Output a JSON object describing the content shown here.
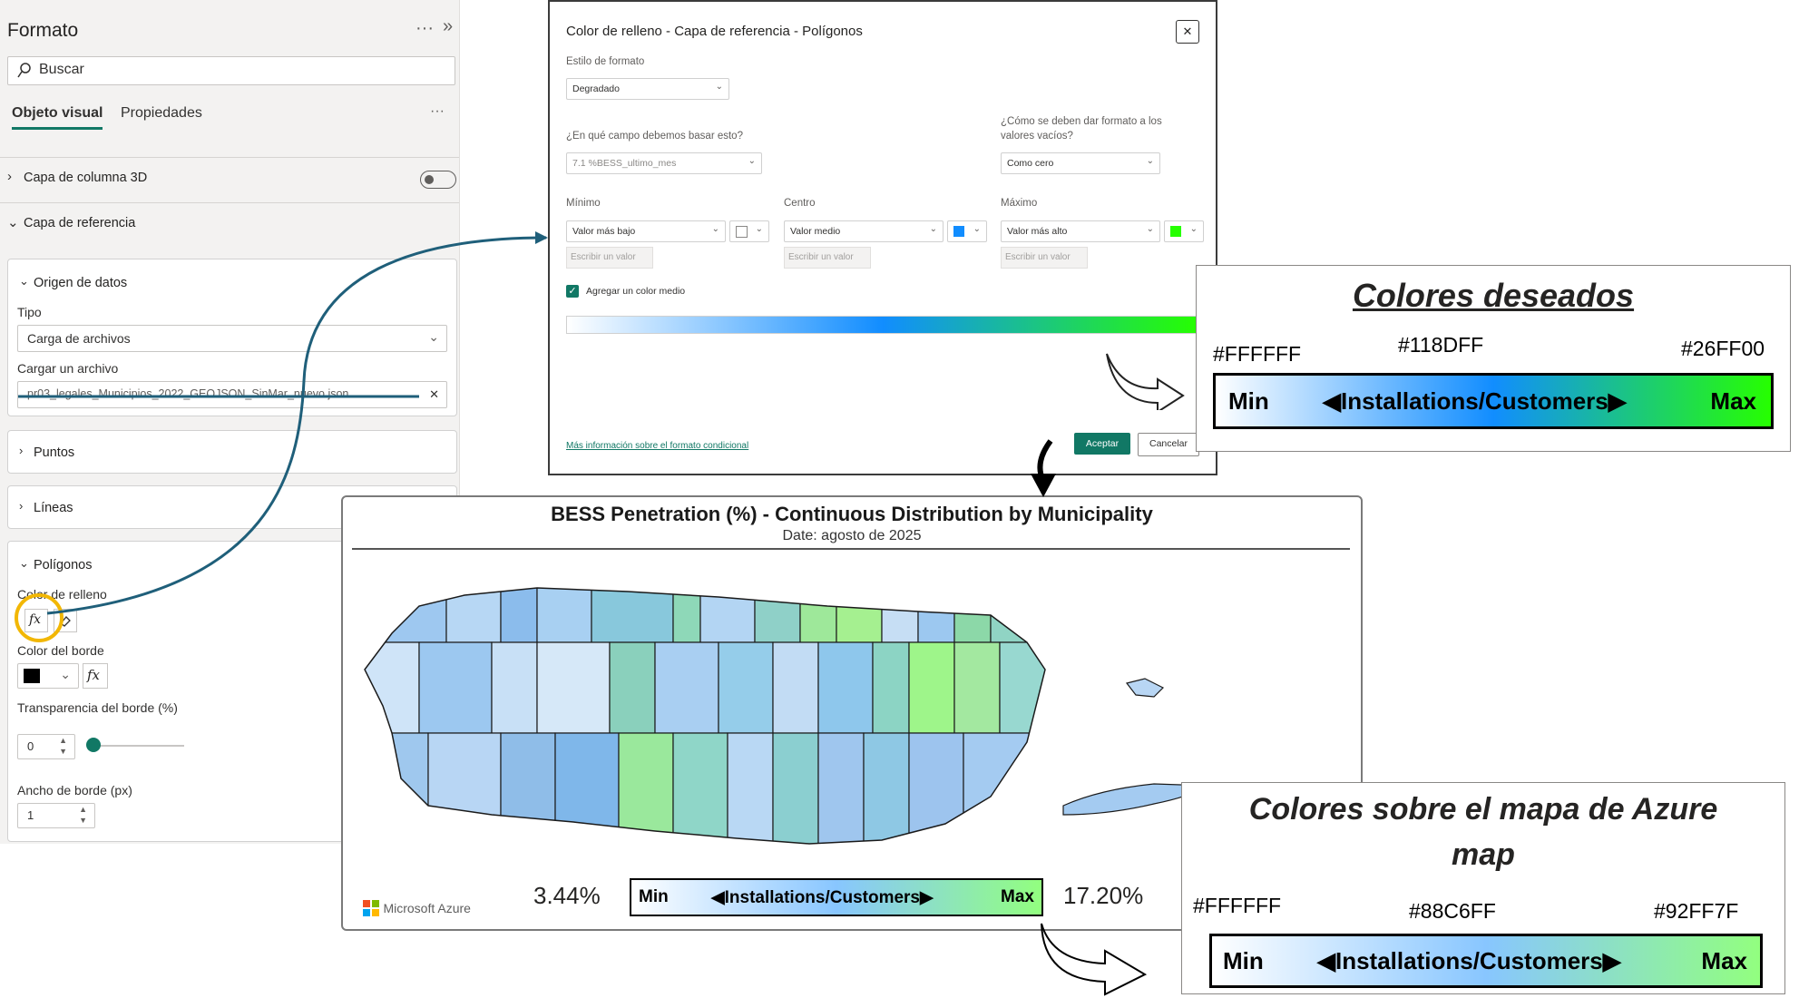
{
  "format_pane": {
    "title": "Formato",
    "more": "···",
    "collapse": "»",
    "search_placeholder": "Buscar",
    "tabs": {
      "visual": "Objeto visual",
      "properties": "Propiedades",
      "more": "···"
    },
    "sections": {
      "columns3d": "Capa de columna 3D",
      "reference": "Capa de referencia"
    },
    "data_source": {
      "title": "Origen de datos",
      "type_label": "Tipo",
      "type_value": "Carga de archivos",
      "file_label": "Cargar un archivo",
      "file_value": "pr03_legales_Municipios_2022_GEOJSON_SinMar_nuevo.json",
      "clear": "✕"
    },
    "points": "Puntos",
    "lines": "Líneas",
    "polygons": {
      "title": "Polígonos",
      "fill_label": "Color de relleno",
      "fx": "fx",
      "border_color_label": "Color del borde",
      "border_color": "#000000",
      "transparency_label": "Transparencia del borde (%)",
      "transparency_value": "0",
      "width_label": "Ancho de borde (px)",
      "width_value": "1"
    }
  },
  "dialog": {
    "title": "Color de relleno - Capa de referencia - Polígonos",
    "close": "✕",
    "format_style_label": "Estilo de formato",
    "format_style_value": "Degradado",
    "field_label": "¿En qué campo debemos basar esto?",
    "field_value": "7.1 %BESS_ultimo_mes",
    "empty_label_1": "¿Cómo se deben dar formato a los",
    "empty_label_2": "valores vacíos?",
    "empty_value": "Como cero",
    "min": {
      "label": "Mínimo",
      "value": "Valor más bajo",
      "color": "#FFFFFF",
      "placeholder": "Escribir un valor"
    },
    "center": {
      "label": "Centro",
      "value": "Valor medio",
      "color": "#118DFF",
      "placeholder": "Escribir un valor"
    },
    "max": {
      "label": "Máximo",
      "value": "Valor más alto",
      "color": "#26FF00",
      "placeholder": "Escribir un valor"
    },
    "add_middle": "Agregar un color medio",
    "link": "Más información sobre el formato condicional",
    "ok": "Aceptar",
    "cancel": "Cancelar"
  },
  "desired": {
    "title": "Colores deseados",
    "hex_min": "#FFFFFF",
    "hex_mid": "#118DFF",
    "hex_max": "#26FF00",
    "bar_min": "Min",
    "bar_label": "◀Installations/Customers▶",
    "bar_max": "Max"
  },
  "azure": {
    "title_line1": "Colores sobre el mapa de Azure",
    "title_line2": "map",
    "hex_min": "#FFFFFF",
    "hex_mid": "#88C6FF",
    "hex_max": "#92FF7F",
    "bar_min": "Min",
    "bar_label": "◀Installations/Customers▶",
    "bar_max": "Max"
  },
  "map": {
    "title": "BESS Penetration (%) - Continuous Distribution by Municipality",
    "subtitle": "Date: agosto de 2025",
    "min_value": "3.44%",
    "max_value": "17.20%",
    "legend_min": "Min",
    "legend_label": "◀Installations/Customers▶",
    "legend_max": "Max",
    "brand": "Microsoft Azure"
  },
  "colors": {
    "accent": "#117865",
    "connector": "#1F5F7A",
    "highlight_circle": "#F2B705"
  }
}
